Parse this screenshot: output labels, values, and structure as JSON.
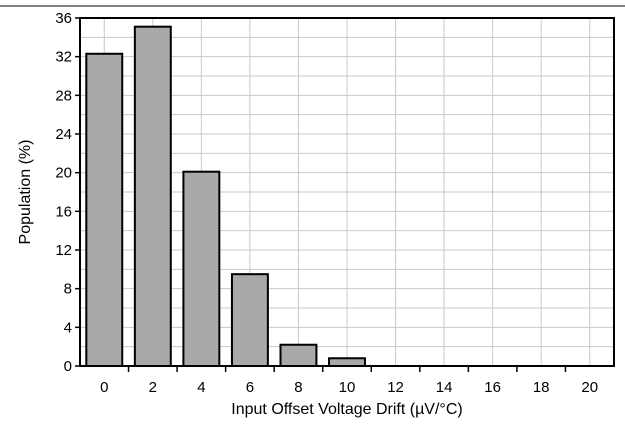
{
  "chart_data": {
    "type": "bar",
    "title": "",
    "xlabel": "Input Offset Voltage Drift (µV/°C)",
    "ylabel": "Population (%)",
    "categories": [
      "0",
      "2",
      "4",
      "6",
      "8",
      "10",
      "12",
      "14",
      "16",
      "18",
      "20"
    ],
    "values": [
      32.3,
      35.1,
      20.1,
      9.5,
      2.2,
      0.8,
      0,
      0,
      0,
      0,
      0
    ],
    "ylim": [
      0,
      36
    ],
    "yticks": [
      "0",
      "4",
      "8",
      "12",
      "16",
      "20",
      "24",
      "28",
      "32",
      "36"
    ],
    "grid": true,
    "bar_color": "#a9a9a9",
    "bar_edge_color": "#000000",
    "grid_color": "#c8c8c8"
  }
}
